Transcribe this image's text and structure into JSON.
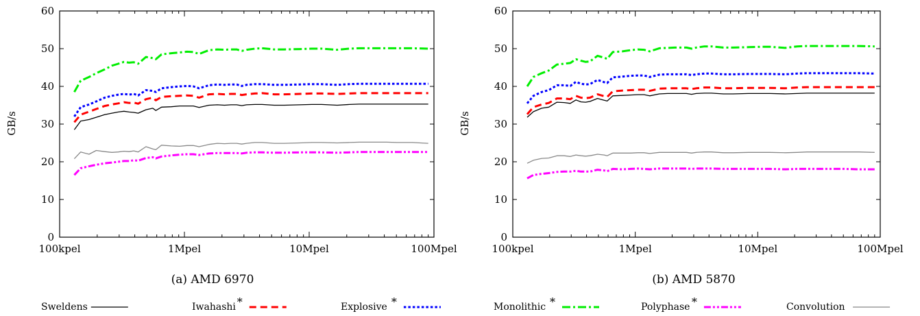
{
  "chart_data": [
    {
      "type": "line",
      "caption": "(a) AMD 6970",
      "ylabel": "GB/s",
      "xlabel": "",
      "x_scale": "log",
      "ylim": [
        0,
        60
      ],
      "yticks": [
        0,
        10,
        20,
        30,
        40,
        50,
        60
      ],
      "xlim": [
        100000,
        100000000
      ],
      "xticks": [
        {
          "value": 100000,
          "label": "100kpel"
        },
        {
          "value": 1000000,
          "label": "1Mpel"
        },
        {
          "value": 10000000,
          "label": "10Mpel"
        },
        {
          "value": 100000000,
          "label": "100Mpel"
        }
      ],
      "x": [
        131072,
        147456,
        172032,
        196608,
        229376,
        262144,
        294912,
        327680,
        360448,
        393216,
        425984,
        491520,
        557056,
        589824,
        655360,
        786432,
        917504,
        1048576,
        1179648,
        1310720,
        1572864,
        1835008,
        2097152,
        2359296,
        2621440,
        2883584,
        3145728,
        3670016,
        4194304,
        5242880,
        6291456,
        8388608,
        10485760,
        12582912,
        16777216,
        20971520,
        25165824,
        33554432,
        41943040,
        50331648,
        67108864,
        90000000
      ],
      "series": [
        {
          "name": "Sweldens",
          "values": [
            28.5,
            30.8,
            31.2,
            31.8,
            32.5,
            32.9,
            33.2,
            33.4,
            33.2,
            33.1,
            32.9,
            33.8,
            34.2,
            33.6,
            34.5,
            34.6,
            34.8,
            34.8,
            34.8,
            34.4,
            35.0,
            35.1,
            35.0,
            35.1,
            35.1,
            34.9,
            35.1,
            35.2,
            35.2,
            35.0,
            35.0,
            35.1,
            35.2,
            35.2,
            35.0,
            35.2,
            35.3,
            35.3,
            35.3,
            35.3,
            35.3,
            35.3
          ]
        },
        {
          "name": "Iwahashi",
          "values": [
            30.5,
            32.5,
            33.3,
            34.0,
            34.8,
            35.2,
            35.5,
            35.8,
            35.6,
            35.7,
            35.4,
            36.6,
            37.0,
            36.3,
            37.2,
            37.4,
            37.5,
            37.6,
            37.5,
            37.0,
            37.9,
            38.0,
            37.9,
            38.0,
            38.0,
            37.7,
            37.9,
            38.1,
            38.2,
            37.9,
            37.9,
            38.0,
            38.1,
            38.1,
            38.0,
            38.1,
            38.2,
            38.2,
            38.2,
            38.2,
            38.2,
            38.2
          ]
        },
        {
          "name": "Explosive",
          "values": [
            32.0,
            34.5,
            35.2,
            36.0,
            37.0,
            37.5,
            37.8,
            38.0,
            37.8,
            38.0,
            37.6,
            39.0,
            38.8,
            38.5,
            39.5,
            39.8,
            40.0,
            40.1,
            40.0,
            39.5,
            40.3,
            40.5,
            40.4,
            40.5,
            40.5,
            40.1,
            40.4,
            40.6,
            40.6,
            40.4,
            40.4,
            40.5,
            40.6,
            40.6,
            40.4,
            40.6,
            40.7,
            40.7,
            40.7,
            40.7,
            40.7,
            40.7
          ]
        },
        {
          "name": "Monolithic",
          "values": [
            38.5,
            41.5,
            42.5,
            43.5,
            44.5,
            45.5,
            46.0,
            46.5,
            46.3,
            46.4,
            46.0,
            47.8,
            47.5,
            47.2,
            48.5,
            48.8,
            49.0,
            49.2,
            49.1,
            48.6,
            49.6,
            49.8,
            49.7,
            49.8,
            49.8,
            49.4,
            49.7,
            50.0,
            50.1,
            49.8,
            49.8,
            49.9,
            50.0,
            50.0,
            49.7,
            50.0,
            50.1,
            50.1,
            50.1,
            50.1,
            50.1,
            50.0
          ]
        },
        {
          "name": "Polyphase",
          "values": [
            16.5,
            18.3,
            18.8,
            19.2,
            19.6,
            19.8,
            20.0,
            20.2,
            20.2,
            20.4,
            20.3,
            21.0,
            21.2,
            20.9,
            21.4,
            21.7,
            21.9,
            22.0,
            22.0,
            21.8,
            22.2,
            22.3,
            22.3,
            22.3,
            22.3,
            22.2,
            22.4,
            22.5,
            22.5,
            22.4,
            22.4,
            22.5,
            22.5,
            22.5,
            22.4,
            22.5,
            22.6,
            22.6,
            22.6,
            22.6,
            22.6,
            22.6
          ]
        },
        {
          "name": "Convolution",
          "values": [
            20.8,
            22.6,
            22.0,
            23.0,
            22.7,
            22.5,
            22.6,
            22.8,
            22.7,
            22.9,
            22.6,
            24.0,
            23.4,
            23.2,
            24.4,
            24.2,
            24.1,
            24.3,
            24.3,
            24.0,
            24.6,
            24.9,
            24.8,
            24.9,
            24.9,
            24.7,
            24.9,
            25.1,
            25.1,
            24.9,
            24.9,
            25.0,
            25.1,
            25.1,
            25.0,
            25.1,
            25.2,
            25.2,
            25.2,
            25.1,
            25.1,
            24.9
          ]
        }
      ]
    },
    {
      "type": "line",
      "caption": "(b) AMD 5870",
      "ylabel": "GB/s",
      "xlabel": "",
      "x_scale": "log",
      "ylim": [
        0,
        60
      ],
      "yticks": [
        0,
        10,
        20,
        30,
        40,
        50,
        60
      ],
      "xlim": [
        100000,
        100000000
      ],
      "xticks": [
        {
          "value": 100000,
          "label": "100kpel"
        },
        {
          "value": 1000000,
          "label": "1Mpel"
        },
        {
          "value": 10000000,
          "label": "10Mpel"
        },
        {
          "value": 100000000,
          "label": "100Mpel"
        }
      ],
      "x": [
        131072,
        147456,
        172032,
        196608,
        229376,
        262144,
        294912,
        327680,
        360448,
        393216,
        425984,
        491520,
        557056,
        589824,
        655360,
        786432,
        917504,
        1048576,
        1179648,
        1310720,
        1572864,
        1835008,
        2097152,
        2359296,
        2621440,
        2883584,
        3145728,
        3670016,
        4194304,
        5242880,
        6291456,
        8388608,
        10485760,
        12582912,
        16777216,
        20971520,
        25165824,
        33554432,
        41943040,
        50331648,
        67108864,
        90000000
      ],
      "series": [
        {
          "name": "Sweldens",
          "values": [
            31.8,
            33.3,
            34.2,
            34.5,
            35.8,
            35.7,
            35.5,
            36.4,
            35.9,
            35.8,
            36.0,
            36.8,
            36.3,
            36.1,
            37.5,
            37.6,
            37.7,
            37.8,
            37.8,
            37.5,
            38.0,
            38.1,
            38.1,
            38.1,
            38.1,
            37.9,
            38.1,
            38.2,
            38.2,
            38.0,
            38.0,
            38.1,
            38.1,
            38.1,
            38.0,
            38.1,
            38.2,
            38.2,
            38.2,
            38.2,
            38.2,
            38.2
          ]
        },
        {
          "name": "Iwahashi",
          "values": [
            32.6,
            34.5,
            35.2,
            35.6,
            36.8,
            36.8,
            36.6,
            37.5,
            37.0,
            36.9,
            37.0,
            37.9,
            37.4,
            37.2,
            38.7,
            38.9,
            39.0,
            39.1,
            39.1,
            38.8,
            39.4,
            39.5,
            39.5,
            39.5,
            39.5,
            39.3,
            39.5,
            39.7,
            39.7,
            39.5,
            39.5,
            39.6,
            39.6,
            39.6,
            39.5,
            39.7,
            39.8,
            39.8,
            39.8,
            39.8,
            39.8,
            39.8
          ]
        },
        {
          "name": "Explosive",
          "values": [
            35.5,
            37.5,
            38.5,
            39.0,
            40.3,
            40.3,
            40.1,
            41.2,
            40.7,
            40.5,
            40.6,
            41.7,
            41.1,
            40.9,
            42.4,
            42.6,
            42.8,
            42.9,
            42.9,
            42.5,
            43.1,
            43.2,
            43.2,
            43.2,
            43.2,
            43.0,
            43.2,
            43.4,
            43.4,
            43.2,
            43.2,
            43.3,
            43.3,
            43.3,
            43.2,
            43.4,
            43.5,
            43.5,
            43.5,
            43.5,
            43.5,
            43.4
          ]
        },
        {
          "name": "Monolithic",
          "values": [
            40.0,
            42.5,
            43.5,
            44.2,
            45.8,
            46.0,
            46.2,
            47.2,
            46.8,
            46.5,
            46.6,
            48.1,
            47.6,
            47.3,
            49.1,
            49.3,
            49.6,
            49.8,
            49.7,
            49.3,
            50.1,
            50.2,
            50.3,
            50.3,
            50.3,
            50.0,
            50.3,
            50.6,
            50.6,
            50.3,
            50.3,
            50.4,
            50.5,
            50.5,
            50.2,
            50.6,
            50.7,
            50.7,
            50.7,
            50.7,
            50.7,
            50.6
          ]
        },
        {
          "name": "Polyphase",
          "values": [
            15.6,
            16.5,
            16.8,
            17.0,
            17.3,
            17.4,
            17.4,
            17.6,
            17.4,
            17.4,
            17.4,
            17.9,
            17.7,
            17.5,
            18.1,
            18.0,
            18.1,
            18.2,
            18.1,
            18.0,
            18.2,
            18.2,
            18.2,
            18.2,
            18.2,
            18.1,
            18.2,
            18.2,
            18.2,
            18.1,
            18.1,
            18.1,
            18.1,
            18.1,
            18.0,
            18.1,
            18.1,
            18.1,
            18.1,
            18.1,
            18.0,
            18.0
          ]
        },
        {
          "name": "Convolution",
          "values": [
            19.6,
            20.4,
            20.9,
            21.0,
            21.6,
            21.6,
            21.4,
            21.8,
            21.6,
            21.5,
            21.6,
            22.0,
            21.8,
            21.6,
            22.3,
            22.3,
            22.3,
            22.4,
            22.4,
            22.2,
            22.5,
            22.5,
            22.5,
            22.5,
            22.5,
            22.3,
            22.5,
            22.6,
            22.6,
            22.4,
            22.4,
            22.5,
            22.5,
            22.5,
            22.4,
            22.5,
            22.6,
            22.6,
            22.6,
            22.6,
            22.6,
            22.5
          ]
        }
      ]
    }
  ],
  "legend": [
    {
      "name": "Sweldens",
      "starred": false,
      "color": "#000000",
      "dash": "solid",
      "width": 1.3
    },
    {
      "name": "Iwahashi",
      "starred": true,
      "color": "#ff0000",
      "dash": "dashed",
      "width": 3
    },
    {
      "name": "Explosive",
      "starred": true,
      "color": "#0000ff",
      "dash": "dotted",
      "width": 3
    },
    {
      "name": "Monolithic",
      "starred": true,
      "color": "#00ee00",
      "dash": "dashdot",
      "width": 3
    },
    {
      "name": "Polyphase",
      "starred": true,
      "color": "#ff00ff",
      "dash": "dashdotdot",
      "width": 3
    },
    {
      "name": "Convolution",
      "starred": false,
      "color": "#888888",
      "dash": "solid",
      "width": 1.3
    }
  ],
  "star_symbol": "*"
}
